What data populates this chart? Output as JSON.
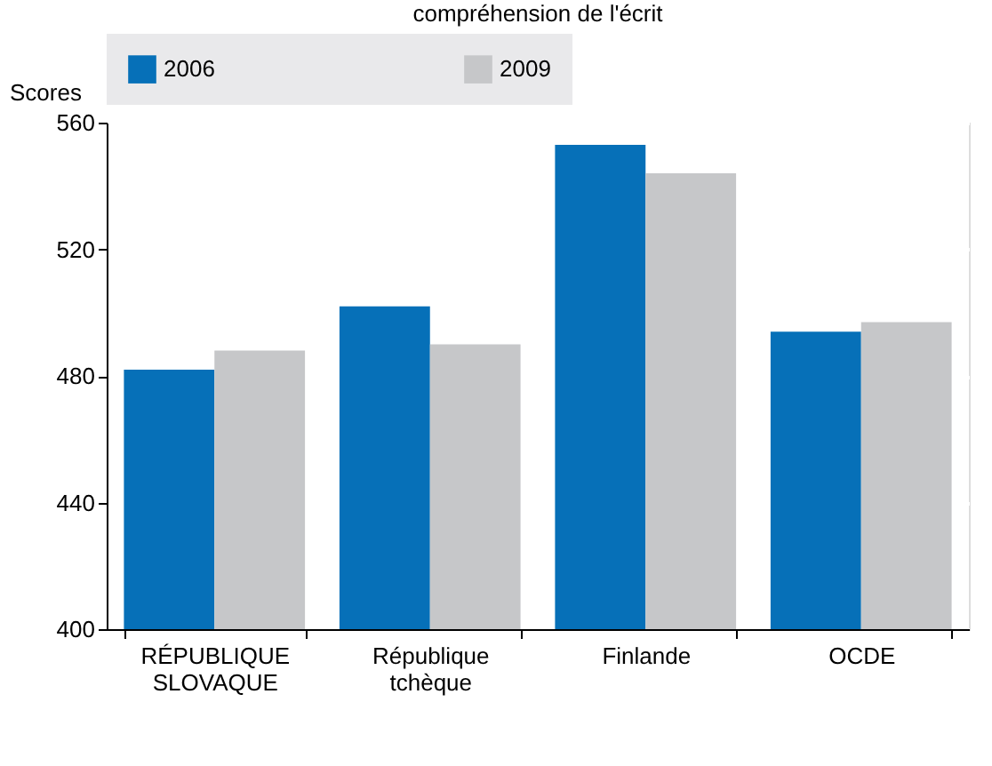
{
  "chart_data": {
    "type": "bar",
    "title": "compréhension de l'écrit",
    "ylabel": "Scores",
    "categories": [
      "RÉPUBLIQUE SLOVAQUE",
      "République tchèque",
      "Finlande",
      "OCDE"
    ],
    "series": [
      {
        "name": "2006",
        "color": "#0670b8",
        "values": [
          482,
          502,
          553,
          494
        ]
      },
      {
        "name": "2009",
        "color": "#c6c7c9",
        "values": [
          488,
          490,
          544,
          497
        ]
      }
    ],
    "ylim": [
      400,
      560
    ],
    "yticks": [
      400,
      440,
      480,
      520,
      560
    ],
    "grid": true,
    "legend": "top"
  }
}
